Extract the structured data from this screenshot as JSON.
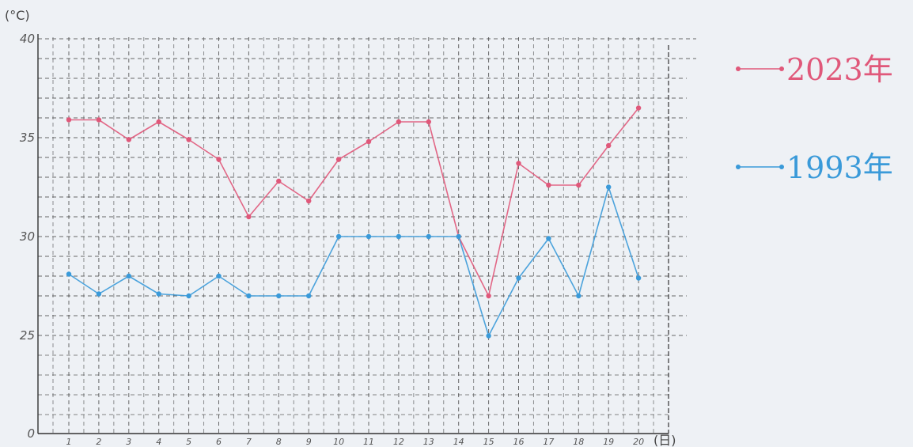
{
  "chart_data": {
    "type": "line",
    "y_unit_label": "(°C)",
    "x_unit_label": "(日)",
    "ylim": [
      0,
      40
    ],
    "y_ticks": [
      "0",
      "25",
      "30",
      "35",
      "40"
    ],
    "x": [
      "1",
      "2",
      "3",
      "4",
      "5",
      "6",
      "7",
      "8",
      "9",
      "10",
      "11",
      "12",
      "13",
      "14",
      "15",
      "16",
      "17",
      "18",
      "19",
      "20"
    ],
    "grid": true,
    "legend_position": "right",
    "series": [
      {
        "name": "2023年",
        "color": "#e0587a",
        "values": [
          35.9,
          35.9,
          34.9,
          35.8,
          34.9,
          33.9,
          31.0,
          32.8,
          31.8,
          33.9,
          34.8,
          35.8,
          35.8,
          30.0,
          27.0,
          33.7,
          32.6,
          32.6,
          34.6,
          36.5
        ]
      },
      {
        "name": "1993年",
        "color": "#3a9ad9",
        "values": [
          28.1,
          27.1,
          28.0,
          27.1,
          27.0,
          28.0,
          27.0,
          27.0,
          27.0,
          30.0,
          30.0,
          30.0,
          30.0,
          30.0,
          24.9,
          27.9,
          29.9,
          27.0,
          32.5,
          27.9
        ]
      }
    ]
  }
}
